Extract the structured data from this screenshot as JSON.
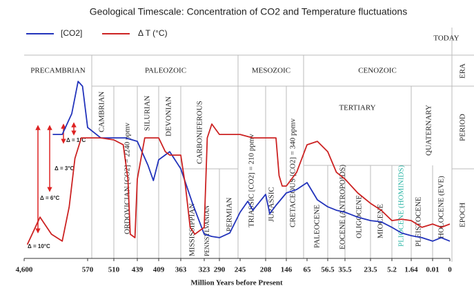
{
  "chart_data": {
    "type": "line",
    "title": "Geological Timescale: Concentration of CO2 and Temperature fluctuations",
    "x_label": "Million Years before Present",
    "today_label": "TODAY",
    "side_labels": [
      "ERA",
      "PERIOD",
      "EPOCH"
    ],
    "xlim": [
      0,
      18
    ],
    "ylim": [
      0,
      100
    ],
    "xticks": [
      {
        "value": 0,
        "label": "4,600"
      },
      {
        "value": 1,
        "label": "570"
      },
      {
        "value": 2,
        "label": "510"
      },
      {
        "value": 3,
        "label": "439"
      },
      {
        "value": 4,
        "label": "409"
      },
      {
        "value": 5,
        "label": "363"
      },
      {
        "value": 6,
        "label": "323"
      },
      {
        "value": 7,
        "label": "290"
      },
      {
        "value": 8,
        "label": "245"
      },
      {
        "value": 9,
        "label": "208"
      },
      {
        "value": 10,
        "label": "146"
      },
      {
        "value": 11,
        "label": "65"
      },
      {
        "value": 12,
        "label": "56.5"
      },
      {
        "value": 13,
        "label": "35.5"
      },
      {
        "value": 14,
        "label": "23.5"
      },
      {
        "value": 15,
        "label": "5.2"
      },
      {
        "value": 16,
        "label": "1.64"
      },
      {
        "value": 17,
        "label": "0.01"
      },
      {
        "value": 18,
        "label": "0"
      }
    ],
    "series": [
      {
        "name": "[CO2]",
        "color": "#2233bb",
        "x": [
          0.45,
          0.6,
          0.75,
          0.85,
          0.92,
          1,
          1.5,
          2,
          2.5,
          3,
          3.5,
          3.75,
          4,
          4.5,
          5,
          5.5,
          6,
          6.5,
          7,
          7.5,
          8,
          8.3,
          8.5,
          9,
          9.2,
          9.5,
          10,
          10.5,
          11,
          11.5,
          12,
          12.5,
          13,
          13.5,
          14,
          14.5,
          15,
          15.5,
          16,
          16.5,
          17,
          17.5,
          18
        ],
        "values": [
          61.0,
          61.0,
          71.2,
          87.1,
          84.7,
          64.4,
          59.3,
          59.3,
          59.3,
          57.6,
          45.8,
          38.3,
          48.5,
          52.5,
          44.1,
          27.1,
          11.9,
          10.8,
          10.2,
          12.5,
          22.7,
          28.1,
          23.7,
          31.5,
          22.0,
          26.1,
          32.2,
          33.9,
          37.3,
          28.8,
          25.4,
          23.7,
          22.7,
          20.3,
          18.6,
          18.0,
          15.3,
          12.5,
          11.2,
          10.2,
          8.5,
          10.2,
          8.5
        ]
      },
      {
        "name": "Δ T (°C)",
        "color": "#cc2222",
        "x": [
          0.05,
          0.25,
          0.43,
          0.6,
          0.71,
          0.8,
          0.9,
          1,
          1.5,
          2,
          2.4,
          2.6,
          2.7,
          2.9,
          3,
          3.35,
          4,
          4.3,
          4.5,
          5,
          5.2,
          5.4,
          5.6,
          6,
          6.2,
          6.5,
          7,
          7.5,
          8,
          8.5,
          9,
          9.5,
          9.65,
          9.8,
          10,
          10.5,
          11,
          11.5,
          12,
          12.5,
          13,
          13.5,
          14,
          14.5,
          15,
          15.5,
          16,
          16.5,
          17,
          17.5,
          18
        ],
        "values": [
          6.8,
          20.3,
          11.9,
          8.5,
          25.4,
          49.2,
          59.3,
          59.3,
          59.3,
          58.3,
          55.9,
          39.0,
          11.9,
          10.2,
          39.0,
          59.3,
          59.3,
          52.5,
          50.8,
          50.8,
          35.6,
          15.3,
          11.9,
          15.3,
          59.3,
          66.1,
          61.0,
          61.0,
          61.0,
          59.3,
          59.3,
          59.3,
          40.7,
          35.6,
          35.6,
          42.4,
          55.9,
          57.6,
          52.5,
          42.4,
          39.0,
          32.2,
          27.1,
          23.7,
          18.6,
          19.3,
          18.6,
          15.3,
          16.9,
          15.3,
          16.9
        ]
      }
    ],
    "eras": [
      "PRECAMBRIAN",
      "PALEOZOIC",
      "MESOZOIC",
      "CENOZOIC"
    ],
    "periods": [
      "CAMBRIAN",
      "ORDOVICIAN [CO2] = 2240 ppmv",
      "SILURIAN",
      "DEVONIAN",
      "CARBONIFEROUS",
      "TRIASSIC [CO2] = 210 ppmv",
      "JURASSIC",
      "CRETACEOUS [CO2] = 340 ppmv",
      "TERTIARY",
      "QUATERNARY"
    ],
    "epochs": [
      {
        "label": "MISSISSIPPIAN"
      },
      {
        "label": "PENNSYLVANIAN"
      },
      {
        "label": "PERMIAN"
      },
      {
        "label": "PALEOCENE"
      },
      {
        "label": "EOCENE (ANTROPOIDS)"
      },
      {
        "label": "OLIGOCENE"
      },
      {
        "label": "MIOCENE"
      },
      {
        "label": "PLIOCENE (HOMINIDS)",
        "color": "#2bb5a5"
      },
      {
        "label": "PLEISTOCENE"
      },
      {
        "label": "HOLOCENE (EVE)"
      }
    ],
    "annotations": [
      "Δ = 1°C",
      "Δ = 3°C",
      "Δ = 6°C",
      "Δ = 10°C"
    ]
  }
}
